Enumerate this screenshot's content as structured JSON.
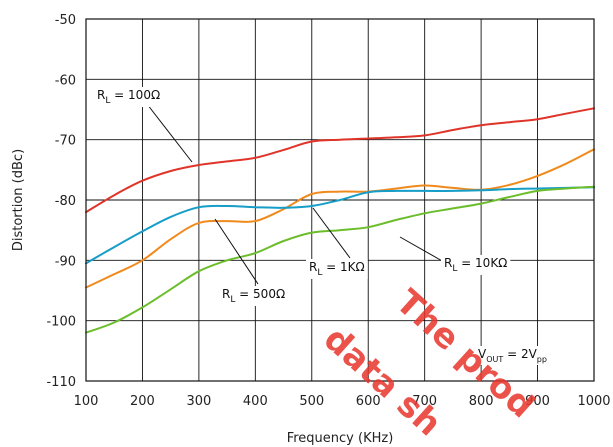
{
  "chart_data": {
    "type": "line",
    "xlabel": "Frequency (KHz)",
    "ylabel": "Distortion (dBc)",
    "xlim": [
      100,
      1000
    ],
    "ylim": [
      -110,
      -50
    ],
    "xticks": [
      100,
      200,
      300,
      400,
      500,
      600,
      700,
      800,
      900,
      1000
    ],
    "yticks": [
      -110,
      -100,
      -90,
      -80,
      -70,
      -60,
      -50
    ],
    "grid": true,
    "series": [
      {
        "color": "#e0342a",
        "label_main": "R",
        "label_sub": "L",
        "label_rest": " = 100Ω",
        "x": [
          100,
          150,
          200,
          250,
          300,
          350,
          400,
          450,
          500,
          550,
          600,
          650,
          700,
          750,
          800,
          850,
          900,
          950,
          1000
        ],
        "y": [
          -82,
          -79.2,
          -76.8,
          -75.2,
          -74.2,
          -73.6,
          -73,
          -71.7,
          -70.3,
          -70,
          -69.8,
          -69.6,
          -69.3,
          -68.4,
          -67.6,
          -67.1,
          -66.6,
          -65.7,
          -64.8
        ]
      },
      {
        "color": "#f08a1c",
        "label_main": "R",
        "label_sub": "L",
        "label_rest": " = 1KΩ",
        "x": [
          100,
          150,
          200,
          250,
          300,
          350,
          400,
          450,
          500,
          550,
          600,
          650,
          700,
          750,
          800,
          850,
          900,
          950,
          1000
        ],
        "y": [
          -94.5,
          -92.3,
          -90,
          -86.5,
          -83.8,
          -83.5,
          -83.5,
          -81.5,
          -79,
          -78.6,
          -78.6,
          -78.1,
          -77.6,
          -78,
          -78.3,
          -77.5,
          -76,
          -74,
          -71.6
        ]
      },
      {
        "color": "#169dc8",
        "label_main": "R",
        "label_sub": "L",
        "label_rest": " = 500Ω",
        "x": [
          100,
          150,
          200,
          250,
          300,
          350,
          400,
          450,
          500,
          550,
          600,
          650,
          700,
          750,
          800,
          850,
          900,
          950,
          1000
        ],
        "y": [
          -90.5,
          -87.8,
          -85.2,
          -82.8,
          -81.2,
          -81,
          -81.2,
          -81.3,
          -81,
          -80,
          -78.7,
          -78.5,
          -78.5,
          -78.5,
          -78.4,
          -78.2,
          -78.1,
          -78,
          -77.9
        ]
      },
      {
        "color": "#6cbd2c",
        "label_main": "R",
        "label_sub": "L",
        "label_rest": " = 10KΩ",
        "x": [
          100,
          150,
          200,
          250,
          300,
          350,
          400,
          450,
          500,
          550,
          600,
          650,
          700,
          750,
          800,
          850,
          900,
          950,
          1000
        ],
        "y": [
          -102,
          -100.3,
          -97.8,
          -94.8,
          -91.8,
          -90,
          -88.8,
          -86.8,
          -85.4,
          -85,
          -84.5,
          -83.3,
          -82.2,
          -81.4,
          -80.6,
          -79.5,
          -78.5,
          -78.1,
          -77.8
        ]
      }
    ],
    "annotation": {
      "main": "V",
      "sub1": "OUT",
      "mid": " = 2V",
      "sub2": "pp"
    },
    "watermark": [
      "The prod",
      "data sh"
    ]
  }
}
